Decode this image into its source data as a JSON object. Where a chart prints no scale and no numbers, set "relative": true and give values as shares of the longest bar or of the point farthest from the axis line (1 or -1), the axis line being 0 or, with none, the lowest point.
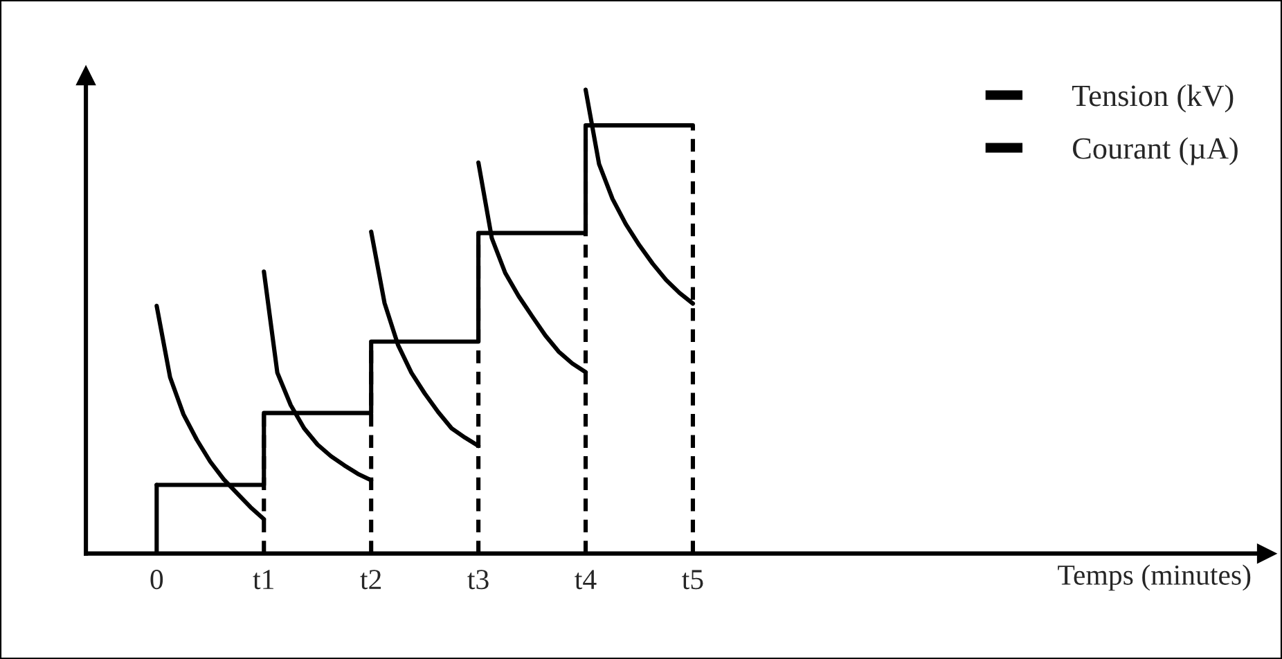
{
  "chart_data": {
    "type": "line",
    "relative": true,
    "annotations": [
      "Temps (minutes)"
    ],
    "categories": [
      "0",
      null,
      null,
      null,
      null,
      null,
      null,
      null,
      "t1",
      null,
      null,
      null,
      null,
      null,
      null,
      null,
      "t2",
      null,
      null,
      null,
      null,
      null,
      null,
      null,
      "t3",
      null,
      null,
      null,
      null,
      null,
      null,
      null,
      "t4",
      null,
      null,
      null,
      null,
      null,
      null,
      null,
      "t5"
    ],
    "series": [
      {
        "name": "Tension (kV)",
        "type": "step",
        "color": "#000000",
        "values": [
          0.148,
          0.148,
          0.148,
          0.148,
          0.148,
          0.148,
          0.148,
          0.148,
          0.303,
          0.303,
          0.303,
          0.303,
          0.303,
          0.303,
          0.303,
          0.303,
          0.457,
          0.457,
          0.457,
          0.457,
          0.457,
          0.457,
          0.457,
          0.457,
          0.691,
          0.691,
          0.691,
          0.691,
          0.691,
          0.691,
          0.691,
          0.691,
          0.923,
          0.923,
          0.923,
          0.923,
          0.923,
          0.923,
          0.923,
          0.923,
          0.923
        ]
      },
      {
        "name": "Courant (µA)",
        "color": "#000000",
        "values": [
          0.534,
          0.38,
          0.3,
          0.245,
          0.198,
          0.16,
          0.13,
          0.1,
          0.074,
          null,
          null,
          null,
          null,
          null,
          null,
          null,
          null,
          null,
          null,
          null,
          null,
          null,
          null,
          null,
          null,
          null,
          null,
          null,
          null,
          null,
          null,
          null,
          null,
          null,
          null,
          null,
          null,
          null,
          null,
          null,
          null
        ]
      },
      {
        "color": "#000000",
        "values": [
          null,
          null,
          null,
          null,
          null,
          null,
          null,
          null,
          0.608,
          0.39,
          0.32,
          0.27,
          0.235,
          0.21,
          0.19,
          0.172,
          0.158,
          null,
          null,
          null,
          null,
          null,
          null,
          null,
          null,
          null,
          null,
          null,
          null,
          null,
          null,
          null,
          null,
          null,
          null,
          null,
          null,
          null,
          null,
          null,
          null
        ]
      },
      {
        "color": "#000000",
        "values": [
          null,
          null,
          null,
          null,
          null,
          null,
          null,
          null,
          null,
          null,
          null,
          null,
          null,
          null,
          null,
          null,
          0.694,
          0.54,
          0.45,
          0.39,
          0.345,
          0.305,
          0.27,
          0.25,
          0.232,
          null,
          null,
          null,
          null,
          null,
          null,
          null,
          null,
          null,
          null,
          null,
          null,
          null,
          null,
          null,
          null
        ]
      },
      {
        "color": "#000000",
        "values": [
          null,
          null,
          null,
          null,
          null,
          null,
          null,
          null,
          null,
          null,
          null,
          null,
          null,
          null,
          null,
          null,
          null,
          null,
          null,
          null,
          null,
          null,
          null,
          null,
          0.843,
          0.68,
          0.605,
          0.555,
          0.512,
          0.47,
          0.435,
          0.41,
          0.391,
          null,
          null,
          null,
          null,
          null,
          null,
          null,
          null
        ]
      },
      {
        "color": "#000000",
        "values": [
          null,
          null,
          null,
          null,
          null,
          null,
          null,
          null,
          null,
          null,
          null,
          null,
          null,
          null,
          null,
          null,
          null,
          null,
          null,
          null,
          null,
          null,
          null,
          null,
          null,
          null,
          null,
          null,
          null,
          null,
          null,
          null,
          1.0,
          0.84,
          0.765,
          0.71,
          0.665,
          0.625,
          0.59,
          0.562,
          0.539
        ]
      }
    ],
    "ref_lines": [
      {
        "axis": "x",
        "value": "0",
        "line_style": "solid",
        "color": "#000000"
      },
      {
        "axis": "x",
        "value": "t1",
        "line_style": "dashed",
        "color": "#000000"
      },
      {
        "axis": "x",
        "value": "t2",
        "line_style": "dashed",
        "color": "#000000"
      },
      {
        "axis": "x",
        "value": "t3",
        "line_style": "dashed",
        "color": "#000000"
      },
      {
        "axis": "x",
        "value": "t4",
        "line_style": "dashed",
        "color": "#000000"
      },
      {
        "axis": "x",
        "value": "t5",
        "line_style": "dashed",
        "color": "#000000"
      }
    ],
    "legend": "top right",
    "grid": false
  }
}
